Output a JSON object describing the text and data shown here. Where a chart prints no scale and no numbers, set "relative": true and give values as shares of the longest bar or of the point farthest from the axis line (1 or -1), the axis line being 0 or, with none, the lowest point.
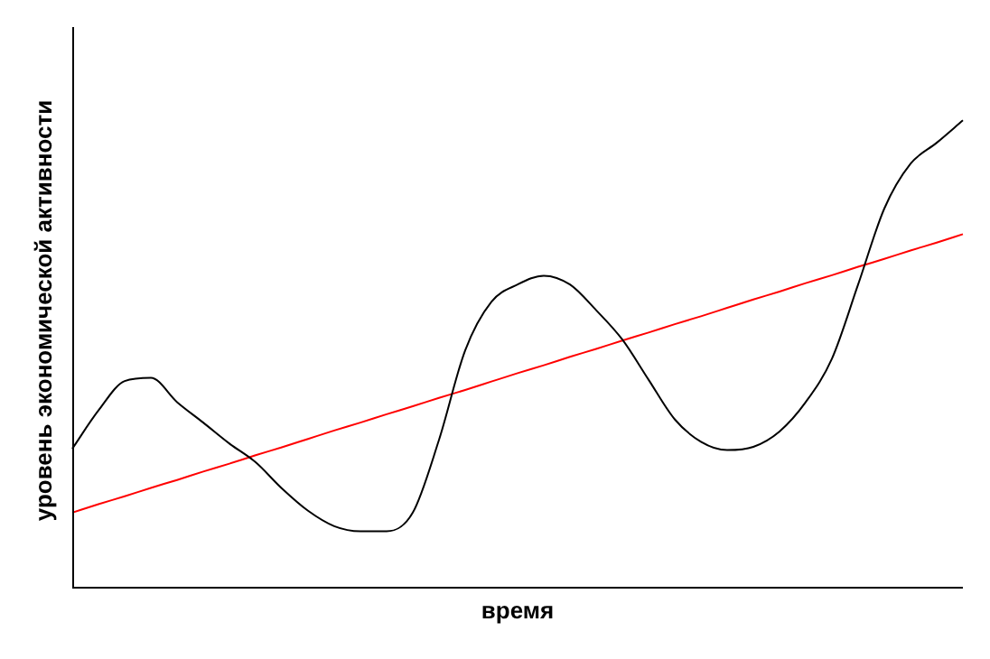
{
  "chart_data": {
    "type": "line",
    "relative": true,
    "xlabel": "время",
    "ylabel": "уровень экономической активности",
    "marker": "none",
    "legend": false,
    "tick_labels": false,
    "categories": [
      null,
      null,
      null,
      null,
      null,
      null,
      null,
      null,
      null,
      null,
      null,
      null,
      null,
      null,
      null,
      null,
      null,
      null,
      null,
      null,
      null,
      null,
      null,
      null,
      null,
      null,
      null,
      null,
      null,
      null,
      null,
      null,
      null,
      null,
      null
    ],
    "series": [
      {
        "color": "#000000",
        "values": [
          0.296,
          0.378,
          0.441,
          0.448,
          0.396,
          0.352,
          0.307,
          0.267,
          0.211,
          0.163,
          0.13,
          0.119,
          0.119,
          0.159,
          0.315,
          0.507,
          0.611,
          0.648,
          0.667,
          0.648,
          0.593,
          0.53,
          0.444,
          0.359,
          0.311,
          0.293,
          0.3,
          0.333,
          0.396,
          0.489,
          0.648,
          0.811,
          0.907,
          0.952,
          1
        ]
      },
      {
        "color": "#ff0000",
        "values": [
          0.159,
          0.177,
          0.194,
          0.212,
          0.229,
          0.247,
          0.264,
          0.282,
          0.299,
          0.317,
          0.335,
          0.352,
          0.37,
          0.387,
          0.405,
          0.422,
          0.44,
          0.458,
          0.475,
          0.493,
          0.51,
          0.528,
          0.545,
          0.563,
          0.58,
          0.598,
          0.616,
          0.633,
          0.651,
          0.668,
          0.686,
          0.703,
          0.721,
          0.738,
          0.756
        ]
      }
    ]
  }
}
